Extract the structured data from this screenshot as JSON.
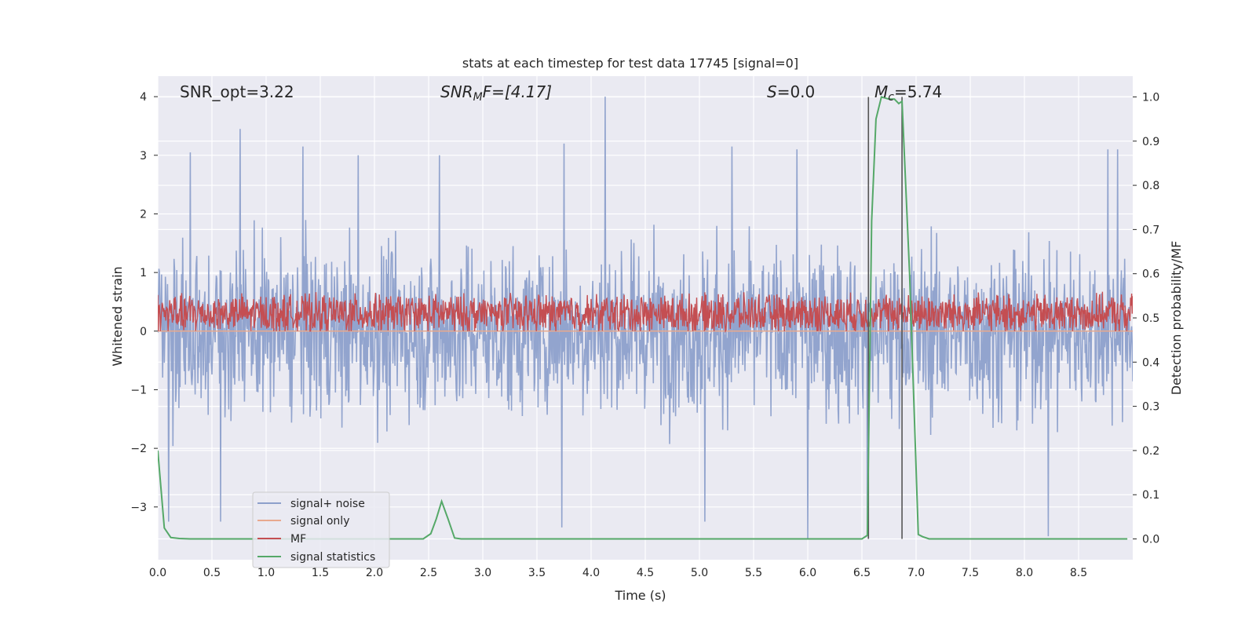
{
  "chart_data": {
    "type": "line",
    "title": "stats at each timestep for test data 17745 [signal=0]",
    "xlabel": "Time (s)",
    "ylabel": "Whitened strain",
    "y2label": "Detection probability/MF",
    "xlim": [
      0.0,
      9.0
    ],
    "ylim": [
      -3.9,
      4.35
    ],
    "y2lim": [
      -0.047,
      1.047
    ],
    "xticks": [
      0.0,
      0.5,
      1.0,
      1.5,
      2.0,
      2.5,
      3.0,
      3.5,
      4.0,
      4.5,
      5.0,
      5.5,
      6.0,
      6.5,
      7.0,
      7.5,
      8.0,
      8.5
    ],
    "xtick_labels": [
      "0.0",
      "0.5",
      "1.0",
      "1.5",
      "2.0",
      "2.5",
      "3.0",
      "3.5",
      "4.0",
      "4.5",
      "5.0",
      "5.5",
      "6.0",
      "6.5",
      "7.0",
      "7.5",
      "8.0",
      "8.5"
    ],
    "yticks": [
      4,
      3,
      2,
      1,
      0,
      -1,
      -2,
      -3
    ],
    "ytick_labels": [
      "4",
      "3",
      "2",
      "1",
      "0",
      "−1",
      "−2",
      "−3"
    ],
    "y2ticks": [
      1.0,
      0.9,
      0.8,
      0.7,
      0.6,
      0.5,
      0.4,
      0.3,
      0.2,
      0.1,
      0.0
    ],
    "y2tick_labels": [
      "1.0",
      "0.9",
      "0.8",
      "0.7",
      "0.6",
      "0.5",
      "0.4",
      "0.3",
      "0.2",
      "0.1",
      "0.0"
    ],
    "annotations": {
      "snr_opt": "SNR_opt=3.22",
      "snr_mf_main": "SNR",
      "snr_mf_sub": "M",
      "snr_mf_rest": "F=[4.17]",
      "s_main": "S",
      "s_rest": "=0.0",
      "mc_main": "M",
      "mc_sub": "c",
      "mc_rest": "=5.74"
    },
    "noise": {
      "description": "dense noisy strain trace, roughly symmetric about 0",
      "std": 1.0,
      "samples": 1800,
      "peaks": [
        {
          "x": 0.76,
          "y": 3.45
        },
        {
          "x": 1.34,
          "y": 3.15
        },
        {
          "x": 2.6,
          "y": 3.0
        },
        {
          "x": 3.75,
          "y": 3.2
        },
        {
          "x": 4.13,
          "y": 4.0
        },
        {
          "x": 5.3,
          "y": 3.15
        },
        {
          "x": 8.77,
          "y": 3.1
        },
        {
          "x": 8.86,
          "y": 3.1
        },
        {
          "x": 0.3,
          "y": 3.05
        },
        {
          "x": 1.85,
          "y": 3.0
        },
        {
          "x": 5.9,
          "y": 3.1
        },
        {
          "x": 6.55,
          "y": -3.5
        },
        {
          "x": 3.73,
          "y": -3.35
        },
        {
          "x": 8.22,
          "y": -3.5
        },
        {
          "x": 0.58,
          "y": -3.25
        },
        {
          "x": 6.0,
          "y": -3.55
        },
        {
          "x": 5.05,
          "y": -3.25
        },
        {
          "x": 0.1,
          "y": -3.25
        }
      ]
    },
    "signal_only": {
      "value": 0.0
    },
    "mf": {
      "mean": 0.3,
      "amplitude": 0.55,
      "samples": 1800
    },
    "signal_statistics": {
      "x": [
        0.0,
        0.06,
        0.12,
        0.2,
        0.3,
        2.45,
        2.52,
        2.57,
        2.62,
        2.68,
        2.74,
        2.8,
        6.5,
        6.55,
        6.59,
        6.63,
        6.68,
        6.75,
        6.8,
        6.84,
        6.87,
        6.94,
        7.02,
        7.06,
        7.12,
        8.95
      ],
      "y": [
        0.2,
        0.025,
        0.003,
        0.001,
        0.0,
        0.0,
        0.012,
        0.045,
        0.085,
        0.045,
        0.002,
        0.0,
        0.0,
        0.008,
        0.72,
        0.95,
        1.0,
        0.995,
        0.995,
        0.985,
        0.99,
        0.6,
        0.01,
        0.005,
        0.0,
        0.0
      ]
    },
    "vlines": [
      6.56,
      6.87
    ],
    "legend": {
      "position": "lower-left",
      "entries": [
        {
          "label": "signal+ noise",
          "color": "#8da0cb"
        },
        {
          "label": "signal only",
          "color": "#e8a98e"
        },
        {
          "label": "MF",
          "color": "#c44e52"
        },
        {
          "label": "signal statistics",
          "color": "#55a868"
        }
      ]
    },
    "colors": {
      "background": "#eaeaf2",
      "grid": "#ffffff",
      "noise": "#8da0cb",
      "signal_only": "#e8a98e",
      "mf": "#c44e52",
      "stat": "#55a868",
      "vline": "#555555",
      "text": "#262626"
    }
  }
}
